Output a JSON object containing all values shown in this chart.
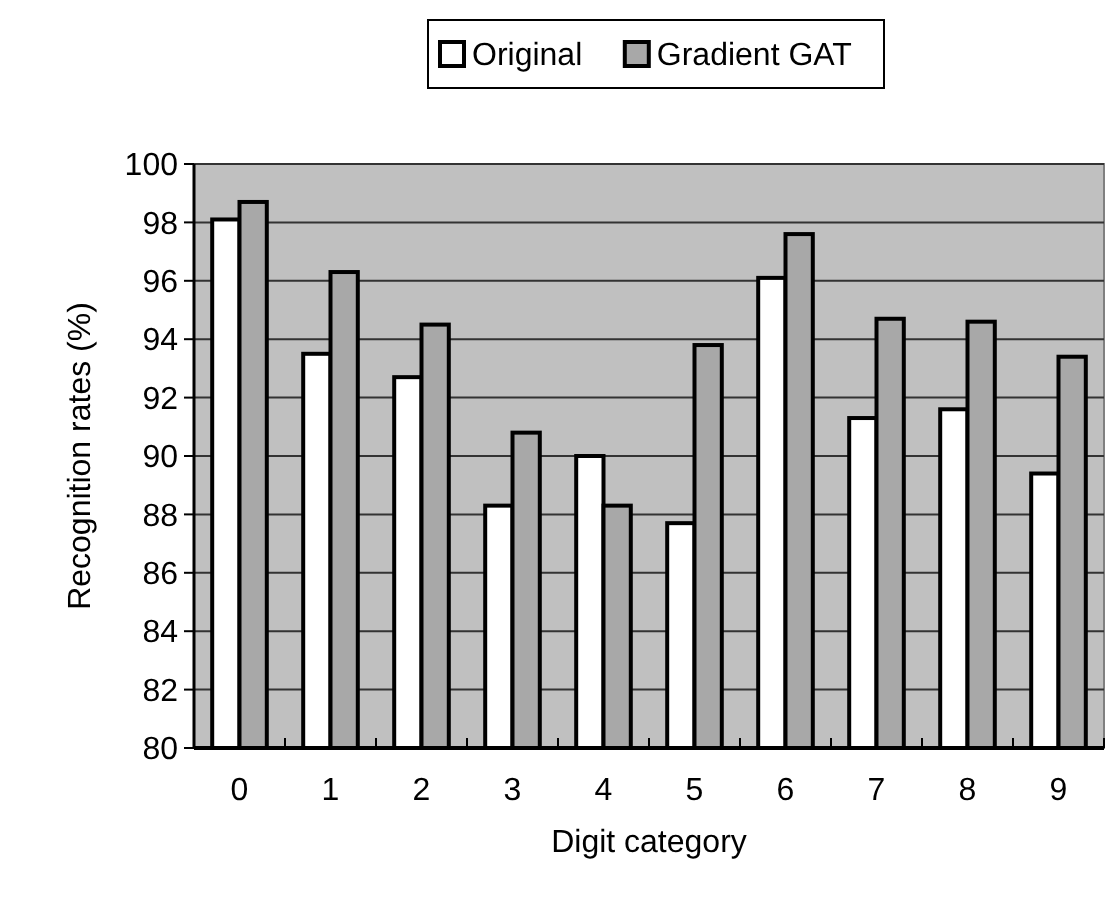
{
  "chart_data": {
    "type": "bar",
    "xlabel": "Digit category",
    "ylabel": "Recognition rates (%)",
    "categories": [
      "0",
      "1",
      "2",
      "3",
      "4",
      "5",
      "6",
      "7",
      "8",
      "9"
    ],
    "series": [
      {
        "name": "Original",
        "color": "#ffffff",
        "values": [
          98.1,
          93.5,
          92.7,
          88.3,
          90.0,
          87.7,
          96.1,
          91.3,
          91.6,
          89.4
        ]
      },
      {
        "name": "Gradient GAT",
        "color": "#a8a8a8",
        "values": [
          98.7,
          96.3,
          94.5,
          90.8,
          88.3,
          93.8,
          97.6,
          94.7,
          94.6,
          93.4
        ]
      }
    ],
    "ylim": [
      80,
      100
    ],
    "yticks": [
      80,
      82,
      84,
      86,
      88,
      90,
      92,
      94,
      96,
      98,
      100
    ],
    "grid": "y",
    "legend": "top"
  }
}
